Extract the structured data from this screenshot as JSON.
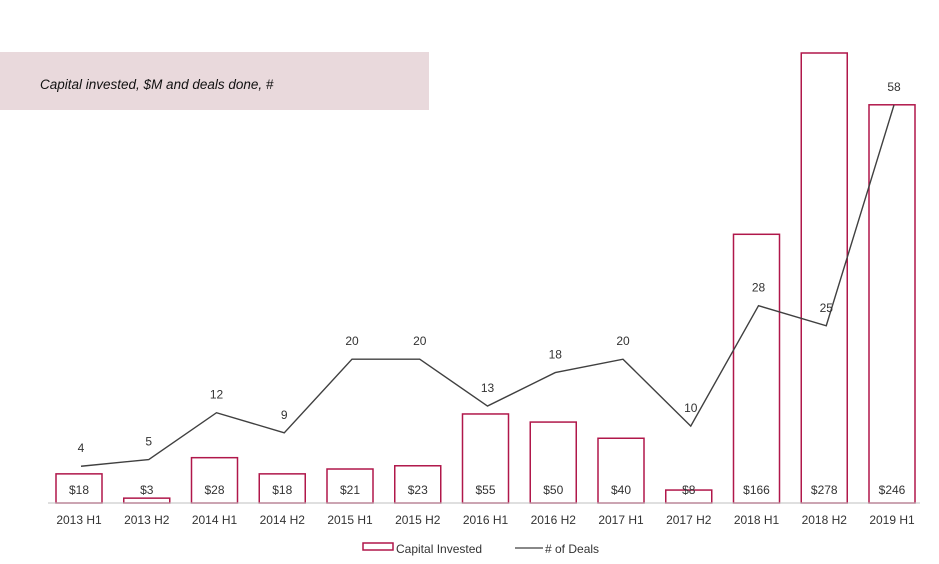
{
  "title": "Capital invested, $M and deals done, #",
  "chart_data": {
    "type": "bar",
    "title": "Capital invested, $M and deals done, #",
    "categories": [
      "2013 H1",
      "2013 H2",
      "2014 H1",
      "2014 H2",
      "2015 H1",
      "2015 H2",
      "2016 H1",
      "2016 H2",
      "2017 H1",
      "2017 H2",
      "2018 H1",
      "2018 H2",
      "2019 H1"
    ],
    "series": [
      {
        "name": "Capital Invested",
        "type": "bar",
        "values": [
          18,
          3,
          28,
          18,
          21,
          23,
          55,
          50,
          40,
          8,
          166,
          278,
          246
        ],
        "labels": [
          "$18",
          "$3",
          "$28",
          "$18",
          "$21",
          "$23",
          "$55",
          "$50",
          "$40",
          "$8",
          "$166",
          "$278",
          "$246"
        ]
      },
      {
        "name": "# of Deals",
        "type": "line",
        "values": [
          4,
          5,
          12,
          9,
          20,
          20,
          13,
          18,
          20,
          10,
          28,
          25,
          58
        ],
        "labels": [
          "4",
          "5",
          "12",
          "9",
          "20",
          "20",
          "13",
          "18",
          "20",
          "10",
          "28",
          "25",
          "58"
        ]
      }
    ],
    "y_bar_range": [
      0,
      278
    ],
    "y_line_range": [
      0,
      58
    ],
    "legend": "bottom-center",
    "grid": false,
    "colors": {
      "bar_stroke": "#b0174a",
      "bar_fill": "#ffffff",
      "line": "#404040",
      "text": "#333333"
    }
  }
}
